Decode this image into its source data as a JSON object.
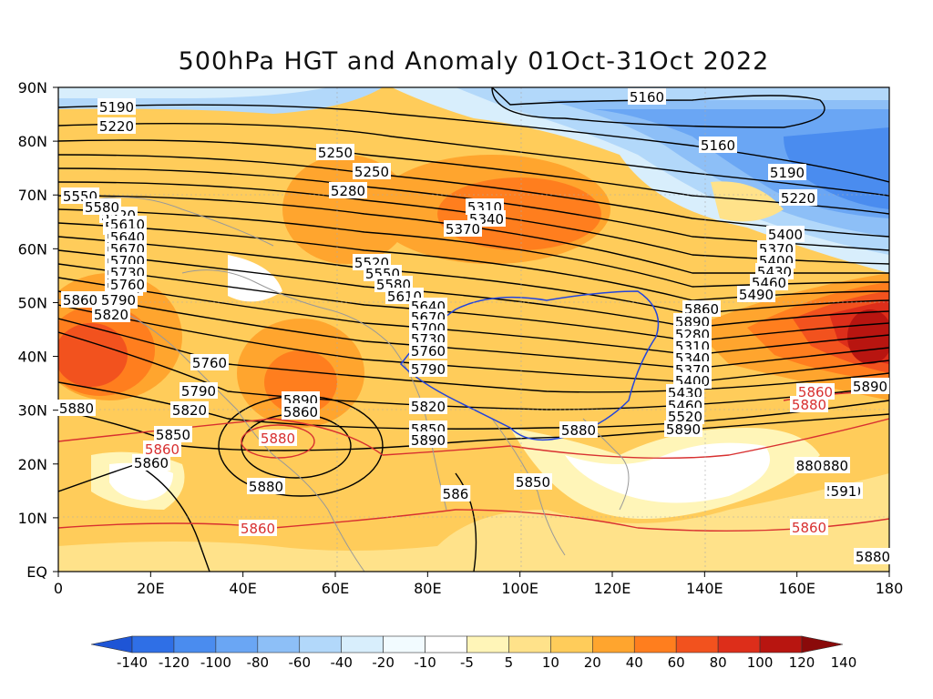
{
  "title": "500hPa HGT and Anomaly 01Oct-31Oct 2022",
  "axes": {
    "lat_labels": [
      "90N",
      "80N",
      "70N",
      "60N",
      "50N",
      "40N",
      "30N",
      "20N",
      "10N",
      "EQ"
    ],
    "lon_labels": [
      "0",
      "20E",
      "40E",
      "60E",
      "80E",
      "100E",
      "120E",
      "140E",
      "160E",
      "180"
    ]
  },
  "colorbar": {
    "labels": [
      "-140",
      "-120",
      "-100",
      "-80",
      "-60",
      "-40",
      "-20",
      "-10",
      "-5",
      "5",
      "10",
      "20",
      "40",
      "60",
      "80",
      "100",
      "120",
      "140"
    ],
    "colors": [
      "#1e55d6",
      "#2f6fe6",
      "#4a8cef",
      "#6aa6f4",
      "#8dbff7",
      "#b2d8fa",
      "#d8eefc",
      "#f2fbff",
      "#ffffff",
      "#fff5b8",
      "#ffe28a",
      "#ffcc5a",
      "#ffa52e",
      "#ff7e1e",
      "#f2521e",
      "#dd2e1a",
      "#b81510",
      "#8a0a0a"
    ]
  },
  "contour_labels": {
    "black": [
      "5160",
      "5160",
      "5190",
      "5220",
      "5190",
      "5220",
      "5250",
      "5250",
      "5280",
      "5310",
      "5340",
      "5370",
      "5400",
      "5370",
      "5400",
      "5430",
      "5460",
      "5490",
      "5520",
      "5550",
      "5580",
      "5610",
      "5640",
      "5670",
      "5700",
      "5730",
      "5760",
      "5790",
      "5820",
      "5850",
      "5860",
      "5880",
      "5890",
      "5520",
      "5550",
      "5580",
      "5610",
      "5640",
      "5670",
      "5700",
      "5730",
      "5760",
      "5790",
      "5820",
      "5850",
      "5860",
      "5880",
      "5890",
      "5860",
      "5880",
      "5890",
      "5880",
      "5820",
      "5850",
      "5860",
      "5890",
      "5280",
      "5310",
      "5340",
      "5370",
      "5400",
      "5430",
      "5460",
      "5490",
      "5520",
      "5550",
      "5580",
      "5610",
      "5640",
      "5670",
      "5700",
      "5730",
      "5760",
      "5790",
      "5820",
      "5860",
      "5880",
      "5890",
      "5880",
      "880",
      "591",
      "586"
    ],
    "red": [
      "5860",
      "5880",
      "5860",
      "5880",
      "5860",
      "5860"
    ]
  }
}
